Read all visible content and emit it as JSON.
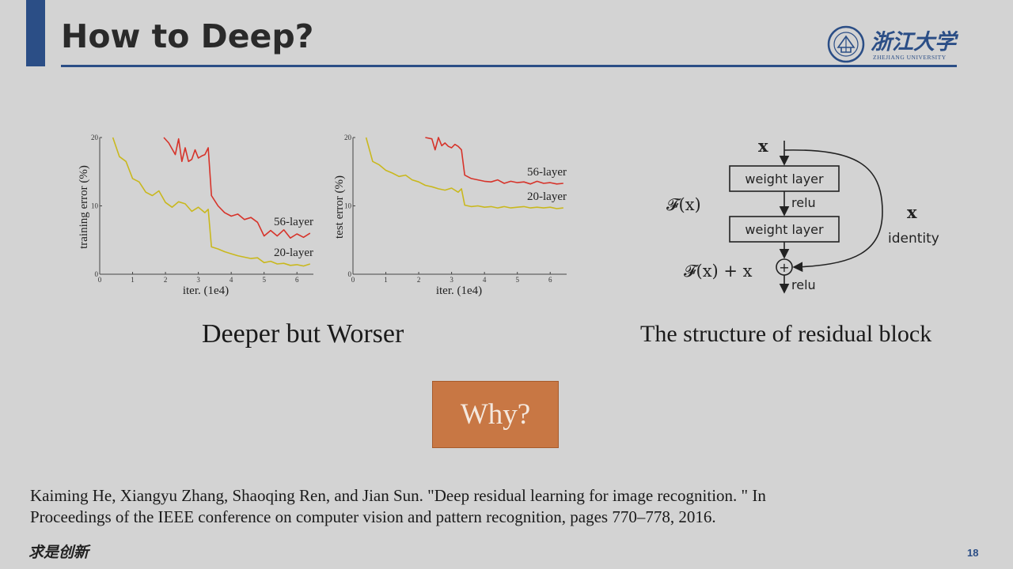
{
  "slide": {
    "title": "How to Deep?",
    "page_number": "18",
    "footer_motto": "求是创新",
    "logo": {
      "name": "浙江大学",
      "subtitle": "ZHEJIANG UNIVERSITY"
    }
  },
  "captions": {
    "left": "Deeper but Worser",
    "right": "The structure of residual block"
  },
  "why_button": {
    "label": "Why?"
  },
  "citation": {
    "line1": "Kaiming He, Xiangyu Zhang, Shaoqing Ren, and Jian Sun. \"Deep residual learning for image recognition. \" In",
    "line2": "Proceedings of the IEEE conference on computer vision and pattern recognition, pages 770–778, 2016."
  },
  "chart_data": [
    {
      "type": "line",
      "xlabel": "iter. (1e4)",
      "ylabel": "training error (%)",
      "xlim": [
        0,
        6.5
      ],
      "ylim": [
        0,
        20
      ],
      "xticks": [
        "0",
        "1",
        "2",
        "3",
        "4",
        "5",
        "6"
      ],
      "yticks": [
        "0",
        "10",
        "20"
      ],
      "series": [
        {
          "name": "56-layer",
          "color": "#d6332a",
          "x": [
            1.95,
            2.1,
            2.3,
            2.4,
            2.5,
            2.6,
            2.7,
            2.8,
            2.9,
            3.0,
            3.1,
            3.2,
            3.3,
            3.4,
            3.6,
            3.8,
            4.0,
            4.2,
            4.4,
            4.6,
            4.8,
            5.0,
            5.2,
            5.4,
            5.6,
            5.8,
            6.0,
            6.2,
            6.4
          ],
          "y": [
            20,
            19.2,
            17.5,
            19.8,
            16.5,
            18.5,
            16.5,
            16.8,
            18.2,
            17.0,
            17.3,
            17.5,
            18.5,
            11.5,
            10.0,
            9.0,
            8.5,
            8.8,
            8.0,
            8.3,
            7.6,
            5.6,
            6.4,
            5.6,
            6.5,
            5.3,
            5.9,
            5.4,
            6.0
          ]
        },
        {
          "name": "20-layer",
          "color": "#c9b81e",
          "x": [
            0.4,
            0.6,
            0.8,
            1.0,
            1.2,
            1.4,
            1.6,
            1.8,
            2.0,
            2.2,
            2.4,
            2.6,
            2.8,
            3.0,
            3.2,
            3.3,
            3.4,
            3.6,
            3.8,
            4.0,
            4.2,
            4.4,
            4.6,
            4.8,
            5.0,
            5.2,
            5.4,
            5.6,
            5.8,
            6.0,
            6.2,
            6.4
          ],
          "y": [
            20,
            17.2,
            16.5,
            14.0,
            13.5,
            12.0,
            11.5,
            12.2,
            10.5,
            9.8,
            10.6,
            10.3,
            9.2,
            9.8,
            9.0,
            9.5,
            4.0,
            3.7,
            3.3,
            3.0,
            2.7,
            2.5,
            2.3,
            2.4,
            1.7,
            1.9,
            1.5,
            1.6,
            1.3,
            1.4,
            1.2,
            1.5
          ]
        }
      ]
    },
    {
      "type": "line",
      "xlabel": "iter. (1e4)",
      "ylabel": "test error (%)",
      "xlim": [
        0,
        6.5
      ],
      "ylim": [
        0,
        20
      ],
      "xticks": [
        "0",
        "1",
        "2",
        "3",
        "4",
        "5",
        "6"
      ],
      "yticks": [
        "0",
        "10",
        "20"
      ],
      "series": [
        {
          "name": "56-layer",
          "color": "#d6332a",
          "x": [
            2.2,
            2.4,
            2.5,
            2.6,
            2.7,
            2.8,
            2.9,
            3.0,
            3.1,
            3.2,
            3.3,
            3.4,
            3.6,
            3.8,
            4.0,
            4.2,
            4.4,
            4.6,
            4.8,
            5.0,
            5.2,
            5.4,
            5.6,
            5.8,
            6.0,
            6.2,
            6.4
          ],
          "y": [
            20,
            19.8,
            18.2,
            20,
            18.8,
            19.2,
            18.7,
            18.5,
            19.0,
            18.7,
            18.2,
            14.5,
            14.0,
            13.8,
            13.6,
            13.5,
            13.8,
            13.3,
            13.6,
            13.4,
            13.5,
            13.2,
            13.6,
            13.3,
            13.4,
            13.2,
            13.3
          ]
        },
        {
          "name": "20-layer",
          "color": "#c9b81e",
          "x": [
            0.4,
            0.6,
            0.8,
            1.0,
            1.2,
            1.4,
            1.6,
            1.8,
            2.0,
            2.2,
            2.4,
            2.6,
            2.8,
            3.0,
            3.2,
            3.3,
            3.4,
            3.6,
            3.8,
            4.0,
            4.2,
            4.4,
            4.6,
            4.8,
            5.0,
            5.2,
            5.4,
            5.6,
            5.8,
            6.0,
            6.2,
            6.4
          ],
          "y": [
            20,
            16.5,
            16.0,
            15.2,
            14.8,
            14.3,
            14.5,
            13.8,
            13.5,
            13.0,
            12.8,
            12.5,
            12.3,
            12.6,
            12.0,
            12.5,
            10.1,
            9.9,
            10.0,
            9.8,
            9.9,
            9.7,
            9.9,
            9.7,
            9.8,
            9.9,
            9.7,
            9.8,
            9.7,
            9.8,
            9.6,
            9.7
          ]
        }
      ]
    }
  ],
  "residual_block": {
    "input_label": "x",
    "layer1_label": "weight layer",
    "layer2_label": "weight layer",
    "relu_mid": "relu",
    "relu_out": "relu",
    "fx_label": "𝓕(x)",
    "sum_label": "𝓕(x) + x",
    "plus_symbol": "+",
    "identity_x": "x",
    "identity_label": "identity"
  }
}
